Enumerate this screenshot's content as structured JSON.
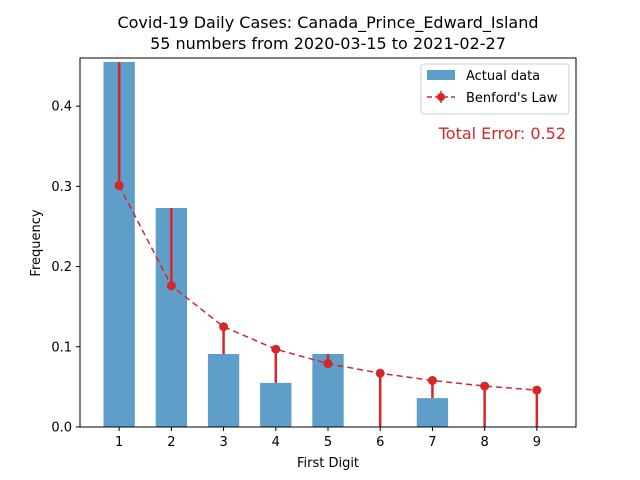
{
  "chart_data": {
    "type": "bar",
    "title_line1": "Covid-19 Daily Cases: Canada_Prince_Edward_Island",
    "title_line2": "55 numbers from 2020-03-15 to 2021-02-27",
    "xlabel": "First Digit",
    "ylabel": "Frequency",
    "categories": [
      "1",
      "2",
      "3",
      "4",
      "5",
      "6",
      "7",
      "8",
      "9"
    ],
    "x": [
      1,
      2,
      3,
      4,
      5,
      6,
      7,
      8,
      9
    ],
    "series": [
      {
        "name": "Actual data",
        "type": "bar",
        "color": "#5f9ec8",
        "values": [
          0.455,
          0.273,
          0.091,
          0.055,
          0.091,
          0.0,
          0.036,
          0.0,
          0.0
        ]
      },
      {
        "name": "Benford's Law",
        "type": "line",
        "color": "#d62728",
        "line_style": "dashed",
        "marker": "circle",
        "values": [
          0.301,
          0.176,
          0.125,
          0.097,
          0.079,
          0.067,
          0.058,
          0.051,
          0.046
        ]
      }
    ],
    "xlim": [
      0.25,
      9.75
    ],
    "ylim": [
      0,
      0.46
    ],
    "yticks": [
      0.0,
      0.1,
      0.2,
      0.3,
      0.4
    ],
    "ytick_labels": [
      "0.0",
      "0.1",
      "0.2",
      "0.3",
      "0.4"
    ],
    "legend_position": "top-right",
    "annotation": {
      "text": "Total Error: 0.52",
      "color": "#d62728"
    },
    "grid": false
  }
}
